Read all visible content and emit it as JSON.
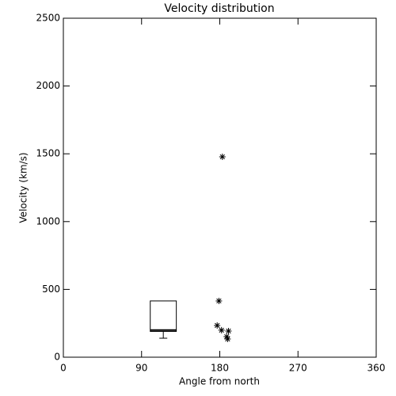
{
  "chart_data": {
    "type": "scatter",
    "title": "Velocity distribution",
    "x_label": "Angle from north",
    "y_label": "Velocity (km/s)",
    "xlim": [
      0,
      360
    ],
    "xticks": [
      0,
      90,
      180,
      270,
      360
    ],
    "ylim": [
      0,
      2500
    ],
    "yticks": [
      0,
      500,
      1000,
      1500,
      2000,
      2500
    ],
    "color": "#000000",
    "marker": "asterisk",
    "x": [
      183,
      179,
      177,
      182,
      190,
      188,
      189
    ],
    "values": [
      1478,
      415,
      234,
      199,
      193,
      152,
      134
    ],
    "box": {
      "x": [
        100,
        130
      ],
      "whisker_low": 140,
      "q1": 190,
      "median": 200,
      "q3": 415
    }
  }
}
